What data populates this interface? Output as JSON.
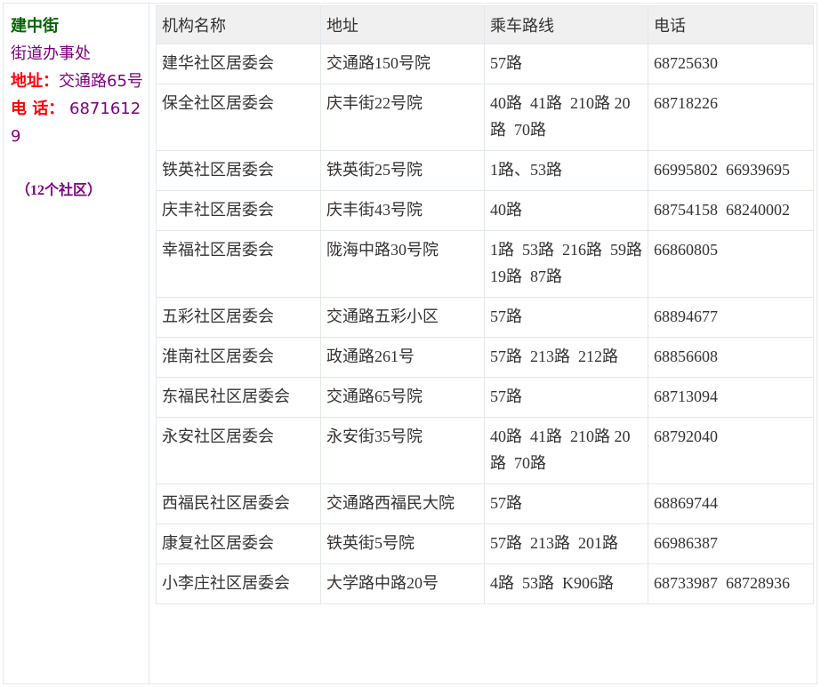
{
  "sidebar": {
    "street": "建中街",
    "office": "街道办事处",
    "address_label": "地址：",
    "address": "交通路65号",
    "phone_label": "电 话：",
    "phone": "68716129",
    "count": "（12个社区）"
  },
  "colors": {
    "street": "#006400",
    "label": "#ff0000",
    "text": "#800080"
  },
  "table": {
    "headers": [
      "机构名称",
      "地址",
      "乘车路线",
      "电话"
    ],
    "rows": [
      [
        "建华社区居委会",
        "交通路150号院",
        "57路",
        "68725630"
      ],
      [
        "保全社区居委会",
        "庆丰街22号院",
        "40路  41路  210路 20路  70路",
        "68718226"
      ],
      [
        "铁英社区居委会",
        "铁英街25号院",
        "1路、53路",
        "66995802  66939695"
      ],
      [
        "庆丰社区居委会",
        "庆丰街43号院",
        "40路",
        "68754158  68240002"
      ],
      [
        "幸福社区居委会",
        "陇海中路30号院",
        "1路  53路  216路  59路  19路  87路",
        "66860805"
      ],
      [
        "五彩社区居委会",
        "交通路五彩小区",
        "57路",
        "68894677"
      ],
      [
        "淮南社区居委会",
        "政通路261号",
        "57路  213路  212路",
        "68856608"
      ],
      [
        "东福民社区居委会",
        "交通路65号院",
        "57路",
        "68713094"
      ],
      [
        "永安社区居委会",
        "永安街35号院",
        "40路  41路  210路 20路  70路",
        "68792040"
      ],
      [
        "西福民社区居委会",
        "交通路西福民大院",
        "57路",
        "68869744"
      ],
      [
        "康复社区居委会",
        "铁英街5号院",
        "57路  213路  201路",
        "66986387"
      ],
      [
        "小李庄社区居委会",
        "大学路中路20号",
        "4路  53路  K906路",
        "68733987  68728936"
      ]
    ]
  }
}
